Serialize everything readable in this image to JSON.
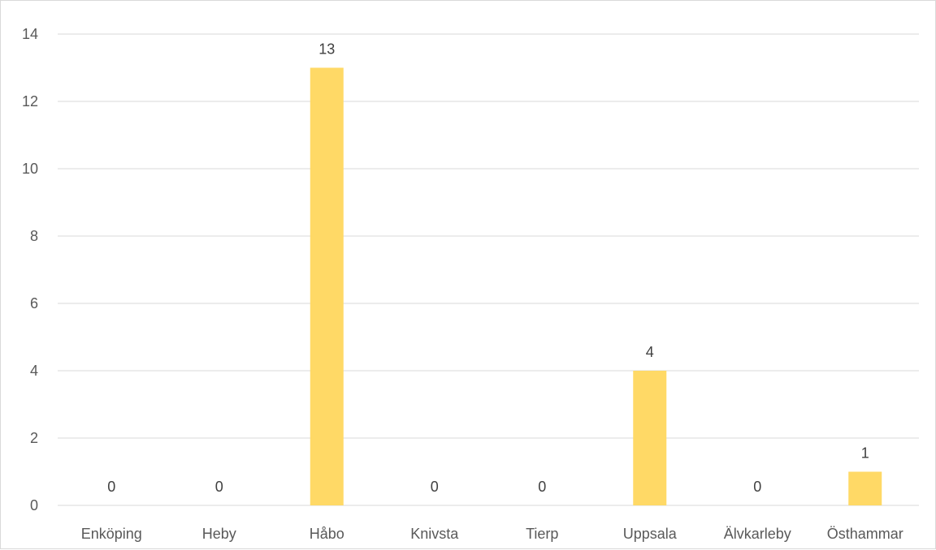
{
  "chart_data": {
    "type": "bar",
    "categories": [
      "Enköping",
      "Heby",
      "Håbo",
      "Knivsta",
      "Tierp",
      "Uppsala",
      "Älvkarleby",
      "Östhammar"
    ],
    "values": [
      0,
      0,
      13,
      0,
      0,
      4,
      0,
      1
    ],
    "data_labels": [
      "0",
      "0",
      "13",
      "0",
      "0",
      "4",
      "0",
      "1"
    ],
    "y_ticks": [
      "0",
      "2",
      "4",
      "6",
      "8",
      "10",
      "12",
      "14"
    ],
    "ylim": [
      0,
      14
    ],
    "grid": true,
    "bar_color": "#FFD966",
    "title": "",
    "xlabel": "",
    "ylabel": ""
  }
}
